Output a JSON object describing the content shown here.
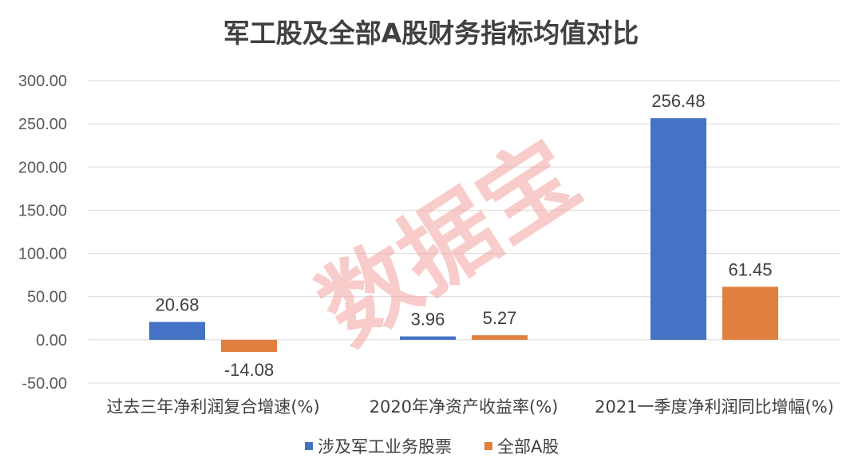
{
  "watermark": "数据宝",
  "chart_data": {
    "type": "bar",
    "title": "军工股及全部A股财务指标均值对比",
    "categories": [
      "过去三年净利润复合增速(%)",
      "2020年净资产收益率(%)",
      "2021一季度净利润同比增幅(%)"
    ],
    "series": [
      {
        "name": "涉及军工业务股票",
        "color": "#4472c4",
        "values": [
          20.68,
          3.96,
          256.48
        ],
        "labels": [
          "20.68",
          "3.96",
          "256.48"
        ]
      },
      {
        "name": "全部A股",
        "color": "#e07f3e",
        "values": [
          -14.08,
          5.27,
          61.45
        ],
        "labels": [
          "-14.08",
          "5.27",
          "61.45"
        ]
      }
    ],
    "ylim": [
      -50,
      300
    ],
    "yticks": [
      "300.00",
      "250.00",
      "200.00",
      "150.00",
      "100.00",
      "50.00",
      "0.00",
      "-50.00"
    ],
    "ytick_values": [
      300,
      250,
      200,
      150,
      100,
      50,
      0,
      -50
    ],
    "grid": true,
    "legend_position": "bottom",
    "xlabel": "",
    "ylabel": ""
  }
}
